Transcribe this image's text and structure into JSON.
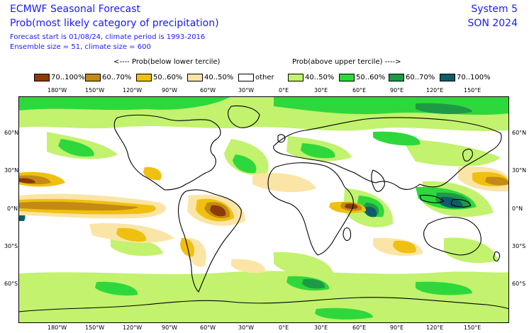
{
  "header": {
    "title": "ECMWF Seasonal Forecast",
    "subtitle": "Prob(most likely category of precipitation)",
    "forecast_info": "Forecast start is 01/08/24, climate period is 1993-2016",
    "ensemble_info": "Ensemble size = 51, climate size = 600",
    "system": "System 5",
    "season": "SON 2024"
  },
  "legend": {
    "below_heading": "<---- Prob(below lower tercile)",
    "above_heading": "Prob(above upper tercile) ---->",
    "items": [
      {
        "label": "70..100%",
        "color": "#8b3a0a"
      },
      {
        "label": "60..70%",
        "color": "#c48a16"
      },
      {
        "label": "50..60%",
        "color": "#f0c010"
      },
      {
        "label": "40..50%",
        "color": "#fbe5a6"
      },
      {
        "label": "other",
        "color": "#ffffff"
      },
      {
        "label": "40..50%",
        "color": "#c2f26e"
      },
      {
        "label": "50..60%",
        "color": "#2ed83c"
      },
      {
        "label": "60..70%",
        "color": "#1d9a46"
      },
      {
        "label": "70..100%",
        "color": "#0e5e6a"
      }
    ]
  },
  "axes": {
    "lon_labels": [
      "180°W",
      "150°W",
      "120°W",
      "90°W",
      "60°W",
      "30°W",
      "0°E",
      "30°E",
      "60°E",
      "90°E",
      "120°E",
      "150°E"
    ],
    "lat_labels": [
      "60°N",
      "30°N",
      "0°N",
      "30°S",
      "60°S"
    ]
  },
  "map": {
    "icon": "world-map-icon",
    "colors": {
      "below_70": "#8b3a0a",
      "below_60": "#c48a16",
      "below_50": "#f0c010",
      "below_40": "#fbe5a6",
      "above_40": "#c2f26e",
      "above_50": "#2ed83c",
      "above_60": "#1d9a46",
      "above_70": "#0e5e6a"
    }
  }
}
